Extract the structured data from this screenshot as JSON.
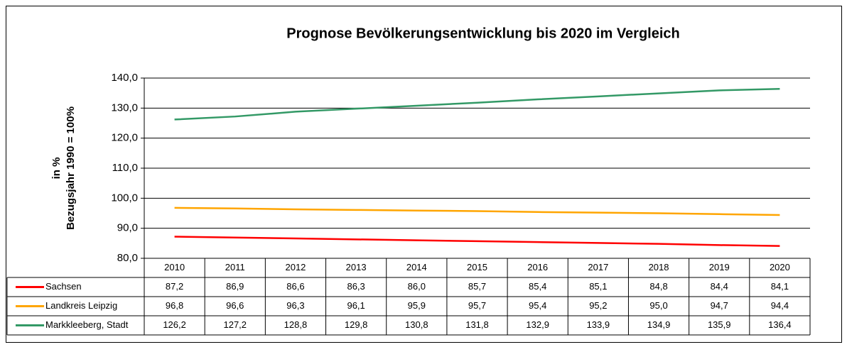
{
  "chart_data": {
    "type": "line",
    "title": "Prognose Bevölkerungsentwicklung bis 2020 im Vergleich",
    "y_label": [
      "in %",
      "Bezugsjahr 1990 = 100%"
    ],
    "categories": [
      "2010",
      "2011",
      "2012",
      "2013",
      "2014",
      "2015",
      "2016",
      "2017",
      "2018",
      "2019",
      "2020"
    ],
    "series": [
      {
        "name": "Sachsen",
        "color": "#ff0000",
        "values": [
          87.2,
          86.9,
          86.6,
          86.3,
          86.0,
          85.7,
          85.4,
          85.1,
          84.8,
          84.4,
          84.1
        ],
        "value_labels": [
          "87,2",
          "86,9",
          "86,6",
          "86,3",
          "86,0",
          "85,7",
          "85,4",
          "85,1",
          "84,8",
          "84,4",
          "84,1"
        ]
      },
      {
        "name": "Landkreis Leipzig",
        "color": "#ffa500",
        "values": [
          96.8,
          96.6,
          96.3,
          96.1,
          95.9,
          95.7,
          95.4,
          95.2,
          95.0,
          94.7,
          94.4
        ],
        "value_labels": [
          "96,8",
          "96,6",
          "96,3",
          "96,1",
          "95,9",
          "95,7",
          "95,4",
          "95,2",
          "95,0",
          "94,7",
          "94,4"
        ]
      },
      {
        "name": "Markkleeberg, Stadt",
        "color": "#339966",
        "values": [
          126.2,
          127.2,
          128.8,
          129.8,
          130.8,
          131.8,
          132.9,
          133.9,
          134.9,
          135.9,
          136.4
        ],
        "value_labels": [
          "126,2",
          "127,2",
          "128,8",
          "129,8",
          "130,8",
          "131,8",
          "132,9",
          "133,9",
          "134,9",
          "135,9",
          "136,4"
        ]
      }
    ],
    "ylim": [
      80,
      140
    ],
    "yticks": [
      {
        "value": 80,
        "label": "80,0"
      },
      {
        "value": 90,
        "label": "90,0"
      },
      {
        "value": 100,
        "label": "100,0"
      },
      {
        "value": 110,
        "label": "110,0"
      },
      {
        "value": 120,
        "label": "120,0"
      },
      {
        "value": 130,
        "label": "130,0"
      },
      {
        "value": 140,
        "label": "140,0"
      }
    ],
    "grid": true
  }
}
